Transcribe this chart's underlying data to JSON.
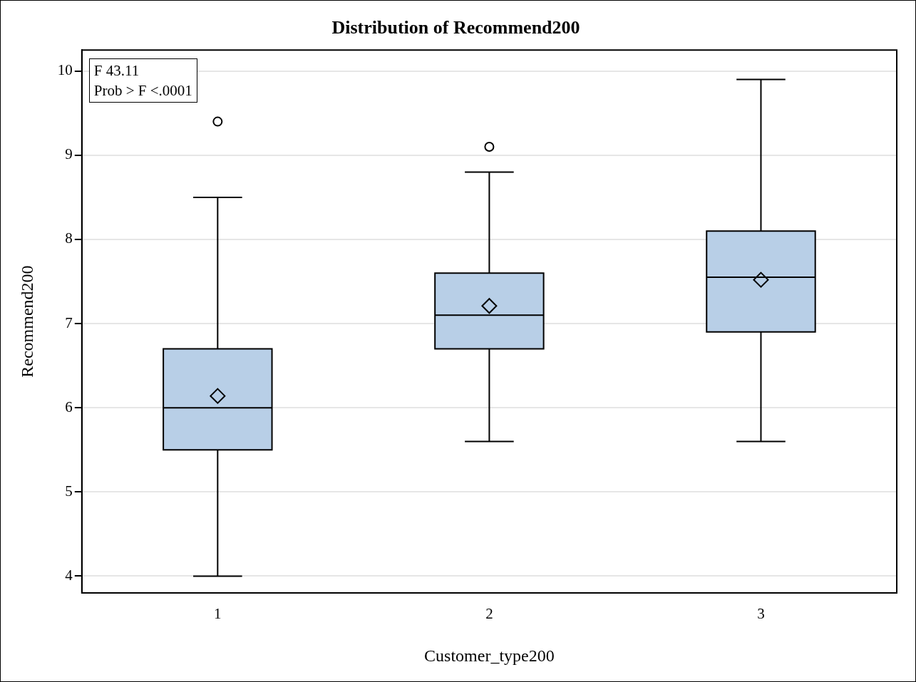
{
  "chart_data": {
    "type": "box",
    "title": "Distribution of Recommend200",
    "xlabel": "Customer_type200",
    "ylabel": "Recommend200",
    "categories": [
      "1",
      "2",
      "3"
    ],
    "boxes": [
      {
        "low": 4.0,
        "q1": 5.5,
        "median": 6.0,
        "q3": 6.7,
        "high": 8.5,
        "mean": 6.14,
        "outliers": [
          9.4
        ]
      },
      {
        "low": 5.6,
        "q1": 6.7,
        "median": 7.1,
        "q3": 7.6,
        "high": 8.8,
        "mean": 7.21,
        "outliers": [
          9.1
        ]
      },
      {
        "low": 5.6,
        "q1": 6.9,
        "median": 7.55,
        "q3": 8.1,
        "high": 9.9,
        "mean": 7.52
      }
    ],
    "color": "#b8cfe7",
    "ylim": [
      3.8,
      10.25
    ],
    "yticks": [
      4,
      5,
      6,
      7,
      8,
      9,
      10
    ],
    "grid": "y",
    "legend": false,
    "annotations": [
      "F 43.11",
      "Prob > F <.0001"
    ]
  }
}
